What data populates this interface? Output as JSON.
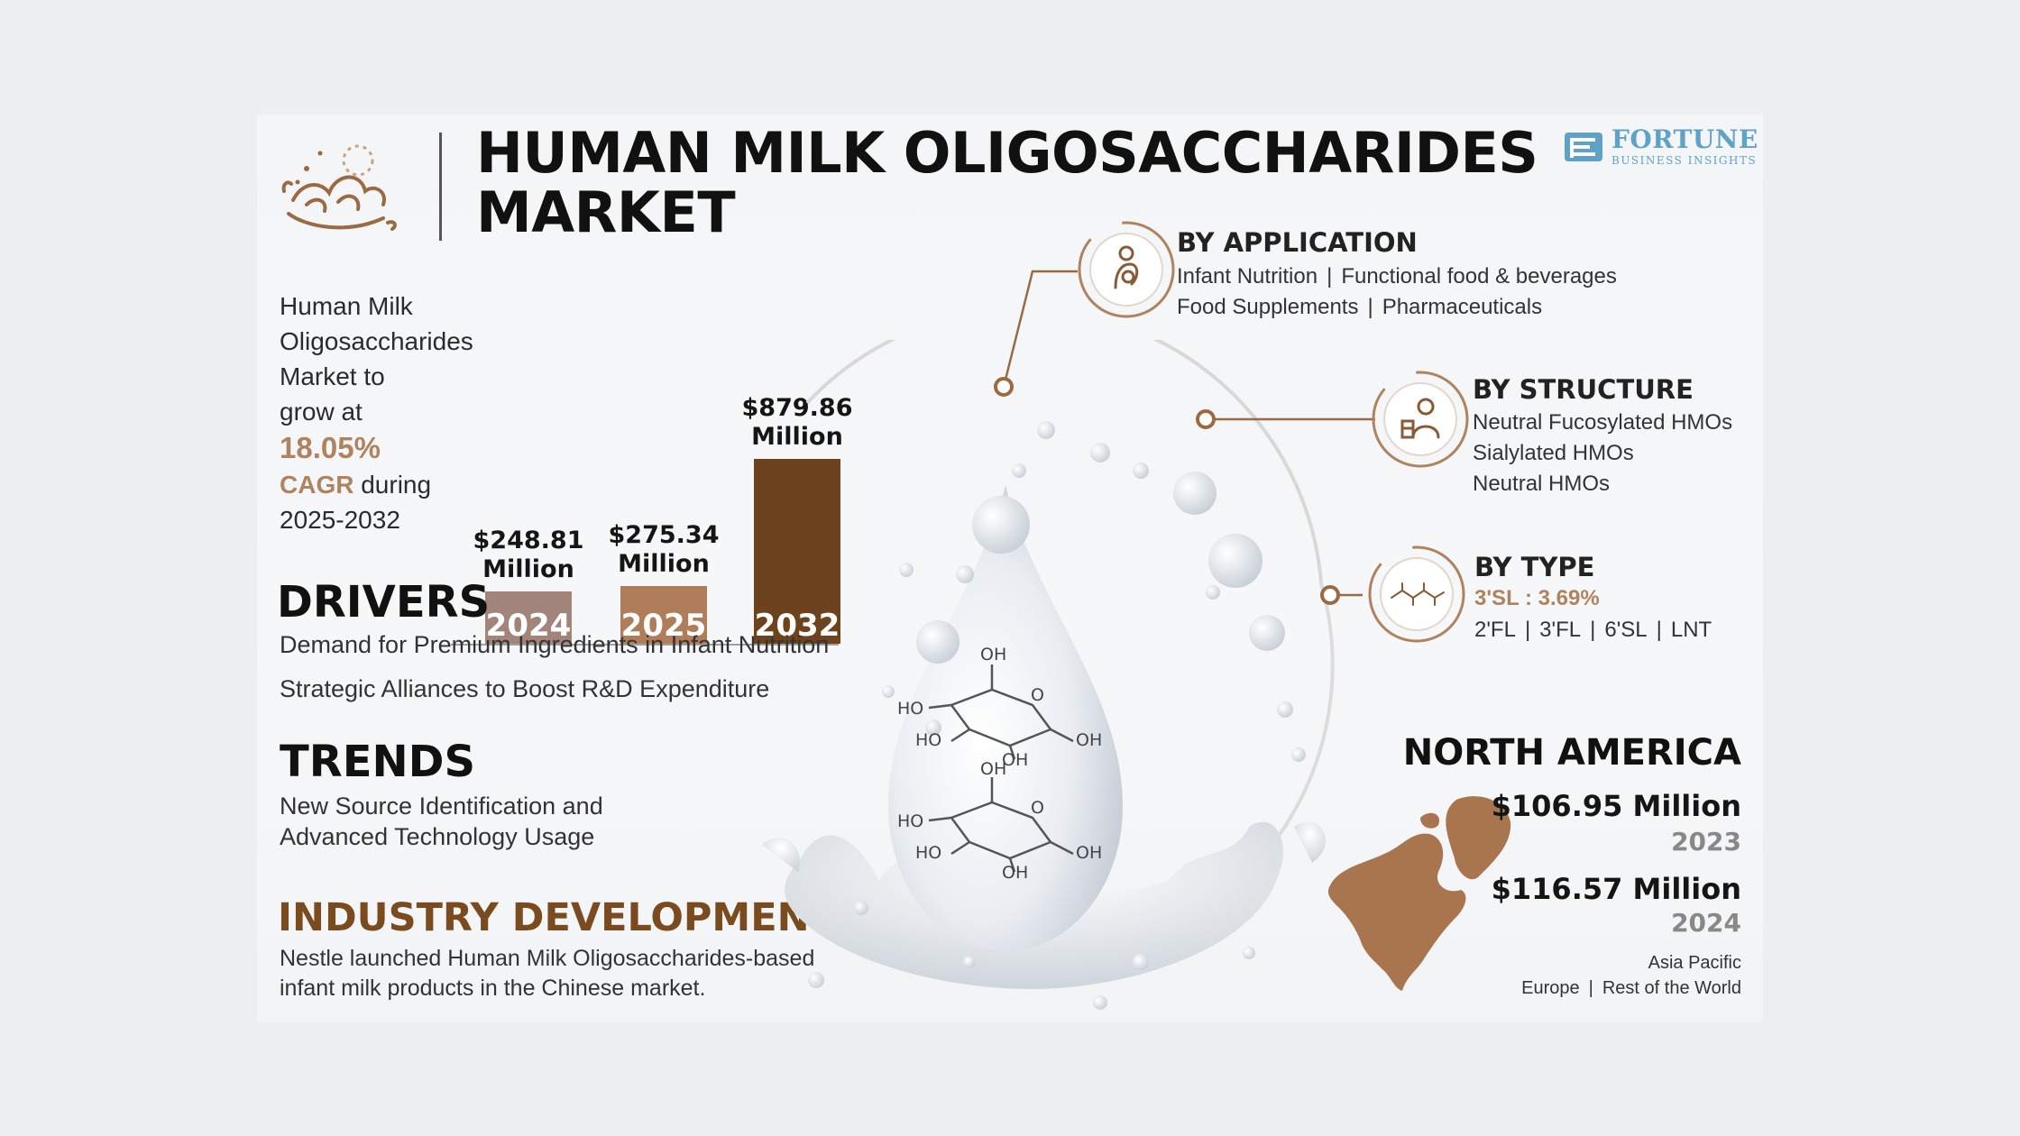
{
  "colors": {
    "accent": "#b0835f",
    "bar_2024": "#a2847a",
    "bar_2025": "#b07d5a",
    "bar_2032": "#6c431c",
    "brand": "#5fa2c7",
    "industry": "#7a4b1f"
  },
  "brand": {
    "name": "FORTUNE",
    "sub": "BUSINESS INSIGHTS"
  },
  "header": {
    "title_line1": "HUMAN MILK OLIGOSACCHARIDES",
    "title_line2": "MARKET",
    "logo_icon": "milk-splash-icon"
  },
  "intro": {
    "line1": "Human Milk",
    "line2": "Oligosaccharides",
    "line3": "Market to",
    "line4": "grow at",
    "cagr_value": "18.05%",
    "cagr_label": "CAGR",
    "during": "during",
    "period": "2025-2032"
  },
  "chart_data": {
    "type": "bar",
    "categories": [
      "2024",
      "2025",
      "2032"
    ],
    "values": [
      248.81,
      275.34,
      879.86
    ],
    "value_labels": [
      "$248.81",
      "$275.34",
      "$879.86"
    ],
    "unit_label": "Million"
  },
  "drivers": {
    "title": "DRIVERS",
    "items": [
      "Demand for Premium Ingredients in Infant Nutrition",
      "Strategic Alliances to Boost R&D Expenditure"
    ]
  },
  "trends": {
    "title": "TRENDS",
    "line1": "New Source Identification and",
    "line2": "Advanced Technology Usage"
  },
  "industry": {
    "title": "INDUSTRY DEVELOPMENT",
    "line1": "Nestle launched Human Milk Oligosaccharides-based",
    "line2": "infant milk products in the Chinese market."
  },
  "molecule": {
    "labels": [
      "OH",
      "HO",
      "O",
      "HO",
      "OH",
      "OH",
      "OH",
      "HO",
      "O",
      "HO",
      "OH",
      "OH"
    ]
  },
  "segments": {
    "application": {
      "title": "BY APPLICATION",
      "icon": "mother-baby-icon",
      "row1": [
        "Infant Nutrition",
        "Functional food & beverages"
      ],
      "row2": [
        "Food Supplements",
        "Pharmaceuticals"
      ]
    },
    "structure": {
      "title": "BY STRUCTURE",
      "icon": "lab-scientist-icon",
      "items": [
        "Neutral Fucosylated HMOs",
        "Sialylated HMOs",
        "Neutral HMOs"
      ]
    },
    "type": {
      "title": "BY TYPE",
      "icon": "molecule-icon",
      "highlight": "3'SL : 3.69%",
      "items": [
        "2'FL",
        "3'FL",
        "6'SL",
        "LNT"
      ]
    }
  },
  "north_america": {
    "title": "NORTH AMERICA",
    "value_2023": "$106.95 Million",
    "year_2023": "2023",
    "value_2024": "$116.57 Million",
    "year_2024": "2024",
    "other_line1": "Asia Pacific",
    "other_line2": [
      "Europe",
      "Rest of the World"
    ],
    "map_icon": "north-america-map-icon"
  }
}
